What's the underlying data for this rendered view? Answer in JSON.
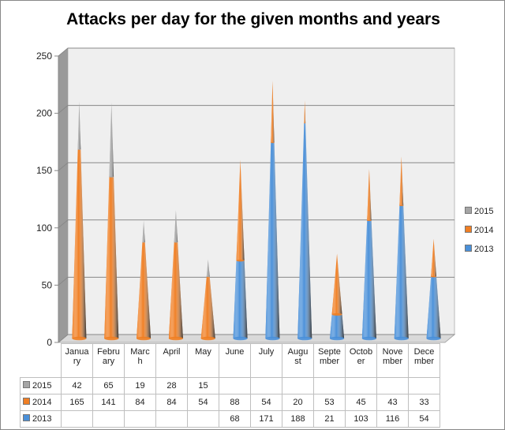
{
  "chart_data": {
    "type": "bar",
    "subtype": "3d-stacked-cone",
    "title": "Attacks per day for the given months and years",
    "categories": [
      "January",
      "February",
      "March",
      "April",
      "May",
      "June",
      "July",
      "August",
      "September",
      "October",
      "November",
      "December"
    ],
    "category_labels_wrapped": [
      [
        "Janua",
        "ry"
      ],
      [
        "Febru",
        "ary"
      ],
      [
        "Marc",
        "h"
      ],
      [
        "April"
      ],
      [
        "May"
      ],
      [
        "June"
      ],
      [
        "July"
      ],
      [
        "Augu",
        "st"
      ],
      [
        "Septe",
        "mber"
      ],
      [
        "Octob",
        "er"
      ],
      [
        "Nove",
        "mber"
      ],
      [
        "Dece",
        "mber"
      ]
    ],
    "series": [
      {
        "name": "2013",
        "color": "#4a90d9",
        "values": [
          null,
          null,
          null,
          null,
          null,
          68,
          171,
          188,
          21,
          103,
          116,
          54
        ]
      },
      {
        "name": "2014",
        "color": "#f07f24",
        "values": [
          165,
          141,
          84,
          84,
          54,
          88,
          54,
          20,
          53,
          45,
          43,
          33
        ]
      },
      {
        "name": "2015",
        "color": "#a5a5a5",
        "values": [
          42,
          65,
          19,
          28,
          15,
          null,
          null,
          null,
          null,
          null,
          null,
          null
        ]
      }
    ],
    "yticks": [
      0,
      50,
      100,
      150,
      200,
      250
    ],
    "ylim": [
      0,
      250
    ],
    "grid": true,
    "legend": "right",
    "data_table": true
  }
}
